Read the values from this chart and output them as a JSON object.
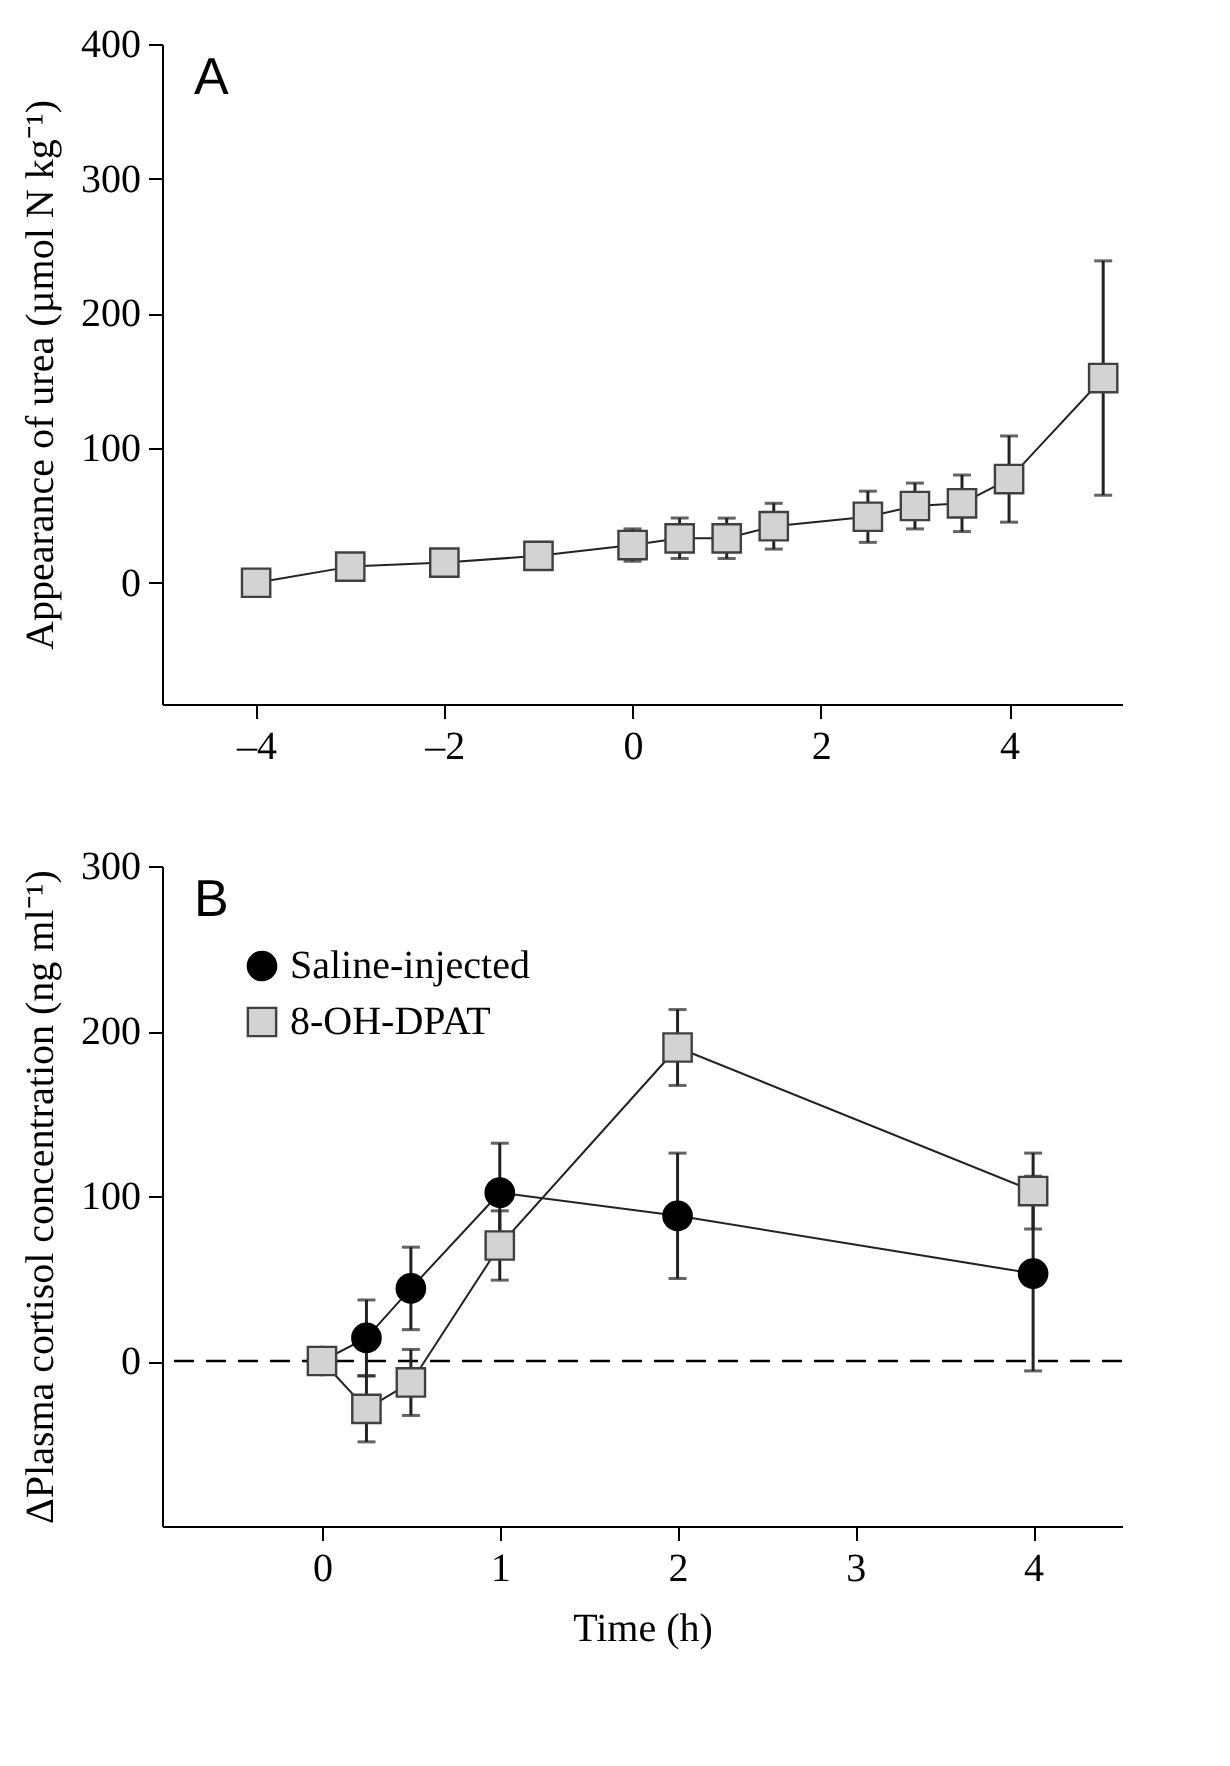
{
  "chart_data": [
    {
      "type": "line",
      "title": "A",
      "ylabel": "Appearance of urea (µmol N kg⁻¹)",
      "x": [
        -4,
        -3,
        -2,
        -1,
        0,
        0.5,
        1,
        1.5,
        2.5,
        3,
        3.5,
        4,
        5
      ],
      "series": [
        {
          "color": "#d3d3d3",
          "marker": "square",
          "values": [
            0,
            12,
            15,
            20,
            28,
            33,
            33,
            42,
            49,
            57,
            59,
            77,
            152
          ],
          "errors": [
            null,
            null,
            null,
            10,
            12,
            15,
            15,
            17,
            19,
            17,
            21,
            32,
            87
          ]
        }
      ],
      "xlim": [
        -5,
        5.2
      ],
      "xticks": [
        {
          "value": -4,
          "label": "–4"
        },
        {
          "value": -2,
          "label": "–2"
        },
        0,
        2,
        4
      ],
      "ylim": [
        -90,
        400
      ],
      "yticks": [
        0,
        100,
        200,
        300,
        400
      ]
    },
    {
      "type": "line",
      "title": "B",
      "xlabel": "Time (h)",
      "ylabel": "ΔPlasma cortisol concentration (ng ml⁻¹)",
      "x": [
        0,
        0.25,
        0.5,
        1,
        2,
        4
      ],
      "series": [
        {
          "name": "Saline-injected",
          "color": "#000000",
          "marker": "circle",
          "values": [
            0,
            14,
            44,
            102,
            88,
            53
          ],
          "errors": [
            null,
            23,
            25,
            30,
            38,
            59
          ]
        },
        {
          "name": "8-OH-DPAT",
          "color": "#d3d3d3",
          "marker": "square",
          "values": [
            0,
            -29,
            -13,
            70,
            190,
            103
          ],
          "errors": [
            null,
            20,
            20,
            21,
            23,
            23
          ]
        }
      ],
      "xlim": [
        -0.9,
        4.5
      ],
      "xticks": [
        0,
        1,
        2,
        3,
        4
      ],
      "ylim": [
        -100,
        300
      ],
      "yticks": [
        0,
        100,
        200,
        300
      ],
      "legend": "top left",
      "ref_lines": [
        {
          "axis": "y",
          "value": 0,
          "line_style": "dashed"
        }
      ]
    }
  ]
}
